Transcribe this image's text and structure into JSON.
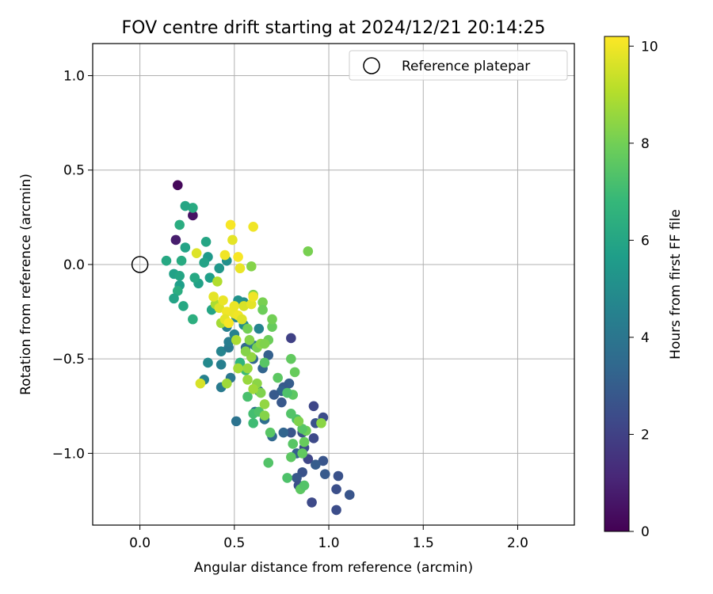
{
  "chart_data": {
    "type": "scatter",
    "title": "FOV centre drift starting at 2024/12/21 20:14:25",
    "xlabel": "Angular distance from reference (arcmin)",
    "ylabel": "Rotation from reference (arcmin)",
    "xlim": [
      -0.25,
      2.3
    ],
    "ylim": [
      -1.38,
      1.17
    ],
    "xticks": [
      0.0,
      0.5,
      1.0,
      1.5,
      2.0
    ],
    "xtick_labels": [
      "0.0",
      "0.5",
      "1.0",
      "1.5",
      "2.0"
    ],
    "yticks": [
      1.0,
      0.5,
      0.0,
      -0.5,
      -1.0
    ],
    "ytick_labels": [
      "1.0",
      "0.5",
      "0.0",
      "−0.5",
      "−1.0"
    ],
    "grid": true,
    "legend": {
      "position": "upper-right",
      "entries": [
        "Reference platepar"
      ]
    },
    "reference_point": {
      "x": 0.0,
      "y": 0.0,
      "marker": "open-circle"
    },
    "colorbar": {
      "label": "Hours from first FF file",
      "colormap": "viridis",
      "range": [
        0,
        10.2
      ],
      "ticks": [
        0,
        2,
        4,
        6,
        8,
        10
      ],
      "tick_labels": [
        "0",
        "2",
        "4",
        "6",
        "8",
        "10"
      ],
      "stops": [
        "#440154",
        "#482878",
        "#3e4989",
        "#31688e",
        "#26828e",
        "#1f9e89",
        "#35b779",
        "#6ece58",
        "#b5de2b",
        "#fde725"
      ]
    },
    "points": [
      {
        "x": 0.2,
        "y": 0.42,
        "h": 0.2
      },
      {
        "x": 0.28,
        "y": 0.26,
        "h": 0.5
      },
      {
        "x": 0.19,
        "y": 0.13,
        "h": 0.8
      },
      {
        "x": 0.8,
        "y": -0.39,
        "h": 2.0
      },
      {
        "x": 0.92,
        "y": -0.75,
        "h": 2.2
      },
      {
        "x": 0.97,
        "y": -0.81,
        "h": 2.4
      },
      {
        "x": 0.93,
        "y": -0.84,
        "h": 2.6
      },
      {
        "x": 0.92,
        "y": -0.92,
        "h": 2.3
      },
      {
        "x": 0.86,
        "y": -0.89,
        "h": 2.5
      },
      {
        "x": 0.8,
        "y": -0.89,
        "h": 2.7
      },
      {
        "x": 0.87,
        "y": -0.97,
        "h": 2.4
      },
      {
        "x": 0.89,
        "y": -1.03,
        "h": 2.2
      },
      {
        "x": 0.86,
        "y": -1.1,
        "h": 2.6
      },
      {
        "x": 0.83,
        "y": -1.13,
        "h": 2.8
      },
      {
        "x": 0.84,
        "y": -1.17,
        "h": 2.5
      },
      {
        "x": 0.91,
        "y": -1.26,
        "h": 2.3
      },
      {
        "x": 0.98,
        "y": -1.11,
        "h": 2.9
      },
      {
        "x": 0.97,
        "y": -1.04,
        "h": 2.7
      },
      {
        "x": 1.05,
        "y": -1.12,
        "h": 2.6
      },
      {
        "x": 1.04,
        "y": -1.19,
        "h": 2.5
      },
      {
        "x": 1.11,
        "y": -1.22,
        "h": 2.7
      },
      {
        "x": 1.04,
        "y": -1.3,
        "h": 2.4
      },
      {
        "x": 0.93,
        "y": -1.06,
        "h": 3.0
      },
      {
        "x": 0.83,
        "y": -1.0,
        "h": 3.1
      },
      {
        "x": 0.79,
        "y": -0.63,
        "h": 3.0
      },
      {
        "x": 0.76,
        "y": -0.65,
        "h": 2.9
      },
      {
        "x": 0.75,
        "y": -0.73,
        "h": 2.8
      },
      {
        "x": 0.75,
        "y": -0.67,
        "h": 3.2
      },
      {
        "x": 0.71,
        "y": -0.69,
        "h": 2.9
      },
      {
        "x": 0.68,
        "y": -0.48,
        "h": 3.1
      },
      {
        "x": 0.65,
        "y": -0.55,
        "h": 3.3
      },
      {
        "x": 0.56,
        "y": -0.44,
        "h": 3.5
      },
      {
        "x": 0.6,
        "y": -0.5,
        "h": 3.4
      },
      {
        "x": 0.63,
        "y": -0.67,
        "h": 3.6
      },
      {
        "x": 0.61,
        "y": -0.78,
        "h": 3.8
      },
      {
        "x": 0.66,
        "y": -0.82,
        "h": 3.7
      },
      {
        "x": 0.7,
        "y": -0.91,
        "h": 3.4
      },
      {
        "x": 0.76,
        "y": -0.89,
        "h": 3.3
      },
      {
        "x": 0.51,
        "y": -0.83,
        "h": 3.9
      },
      {
        "x": 0.48,
        "y": -0.6,
        "h": 4.0
      },
      {
        "x": 0.43,
        "y": -0.65,
        "h": 4.2
      },
      {
        "x": 0.43,
        "y": -0.53,
        "h": 4.4
      },
      {
        "x": 0.43,
        "y": -0.46,
        "h": 4.6
      },
      {
        "x": 0.36,
        "y": -0.52,
        "h": 4.8
      },
      {
        "x": 0.47,
        "y": -0.44,
        "h": 4.1
      },
      {
        "x": 0.47,
        "y": -0.41,
        "h": 4.3
      },
      {
        "x": 0.5,
        "y": -0.37,
        "h": 4.5
      },
      {
        "x": 0.51,
        "y": -0.28,
        "h": 4.7
      },
      {
        "x": 0.46,
        "y": -0.33,
        "h": 4.4
      },
      {
        "x": 0.55,
        "y": -0.32,
        "h": 4.9
      },
      {
        "x": 0.63,
        "y": -0.34,
        "h": 4.6
      },
      {
        "x": 0.61,
        "y": -0.43,
        "h": 4.2
      },
      {
        "x": 0.55,
        "y": -0.2,
        "h": 5.0
      },
      {
        "x": 0.52,
        "y": -0.19,
        "h": 5.2
      },
      {
        "x": 0.34,
        "y": -0.61,
        "h": 4.5
      },
      {
        "x": 0.46,
        "y": 0.02,
        "h": 5.1
      },
      {
        "x": 0.42,
        "y": -0.02,
        "h": 5.4
      },
      {
        "x": 0.37,
        "y": -0.07,
        "h": 5.7
      },
      {
        "x": 0.36,
        "y": 0.04,
        "h": 5.5
      },
      {
        "x": 0.34,
        "y": 0.01,
        "h": 5.9
      },
      {
        "x": 0.35,
        "y": 0.12,
        "h": 6.0
      },
      {
        "x": 0.31,
        "y": -0.1,
        "h": 5.8
      },
      {
        "x": 0.29,
        "y": -0.07,
        "h": 6.1
      },
      {
        "x": 0.28,
        "y": 0.3,
        "h": 6.2
      },
      {
        "x": 0.24,
        "y": 0.31,
        "h": 6.0
      },
      {
        "x": 0.21,
        "y": 0.21,
        "h": 6.3
      },
      {
        "x": 0.24,
        "y": 0.09,
        "h": 5.9
      },
      {
        "x": 0.22,
        "y": 0.02,
        "h": 6.2
      },
      {
        "x": 0.14,
        "y": 0.02,
        "h": 6.1
      },
      {
        "x": 0.18,
        "y": -0.05,
        "h": 5.8
      },
      {
        "x": 0.21,
        "y": -0.06,
        "h": 6.0
      },
      {
        "x": 0.21,
        "y": -0.11,
        "h": 5.7
      },
      {
        "x": 0.2,
        "y": -0.14,
        "h": 6.3
      },
      {
        "x": 0.18,
        "y": -0.18,
        "h": 5.9
      },
      {
        "x": 0.23,
        "y": -0.22,
        "h": 6.1
      },
      {
        "x": 0.28,
        "y": -0.29,
        "h": 6.4
      },
      {
        "x": 0.38,
        "y": -0.24,
        "h": 6.0
      },
      {
        "x": 0.53,
        "y": -0.52,
        "h": 6.6
      },
      {
        "x": 0.56,
        "y": -0.56,
        "h": 6.9
      },
      {
        "x": 0.57,
        "y": -0.7,
        "h": 7.2
      },
      {
        "x": 0.6,
        "y": -0.79,
        "h": 7.1
      },
      {
        "x": 0.6,
        "y": -0.84,
        "h": 7.0
      },
      {
        "x": 0.63,
        "y": -0.78,
        "h": 7.3
      },
      {
        "x": 0.69,
        "y": -0.89,
        "h": 7.5
      },
      {
        "x": 0.68,
        "y": -1.05,
        "h": 7.4
      },
      {
        "x": 0.78,
        "y": -1.13,
        "h": 7.3
      },
      {
        "x": 0.8,
        "y": -1.02,
        "h": 7.6
      },
      {
        "x": 0.81,
        "y": -0.95,
        "h": 7.5
      },
      {
        "x": 0.86,
        "y": -1.0,
        "h": 7.7
      },
      {
        "x": 0.85,
        "y": -1.19,
        "h": 7.6
      },
      {
        "x": 0.87,
        "y": -1.17,
        "h": 7.4
      },
      {
        "x": 0.87,
        "y": -0.94,
        "h": 7.8
      },
      {
        "x": 0.88,
        "y": -0.88,
        "h": 7.9
      },
      {
        "x": 0.86,
        "y": -0.87,
        "h": 7.5
      },
      {
        "x": 0.83,
        "y": -0.82,
        "h": 7.2
      },
      {
        "x": 0.8,
        "y": -0.79,
        "h": 7.4
      },
      {
        "x": 0.81,
        "y": -0.69,
        "h": 7.6
      },
      {
        "x": 0.78,
        "y": -0.68,
        "h": 7.3
      },
      {
        "x": 0.8,
        "y": -0.5,
        "h": 7.7
      },
      {
        "x": 0.82,
        "y": -0.57,
        "h": 7.8
      },
      {
        "x": 0.73,
        "y": -0.6,
        "h": 7.6
      },
      {
        "x": 0.66,
        "y": -0.52,
        "h": 7.5
      },
      {
        "x": 0.68,
        "y": -0.4,
        "h": 7.9
      },
      {
        "x": 0.7,
        "y": -0.33,
        "h": 7.8
      },
      {
        "x": 0.7,
        "y": -0.29,
        "h": 8.0
      },
      {
        "x": 0.65,
        "y": -0.2,
        "h": 8.1
      },
      {
        "x": 0.65,
        "y": -0.24,
        "h": 7.9
      },
      {
        "x": 0.6,
        "y": -0.16,
        "h": 8.2
      },
      {
        "x": 0.57,
        "y": -0.34,
        "h": 8.0
      },
      {
        "x": 0.58,
        "y": -0.4,
        "h": 8.3
      },
      {
        "x": 0.62,
        "y": -0.44,
        "h": 8.1
      },
      {
        "x": 0.64,
        "y": -0.42,
        "h": 8.4
      },
      {
        "x": 0.66,
        "y": -0.42,
        "h": 8.2
      },
      {
        "x": 0.59,
        "y": -0.49,
        "h": 8.5
      },
      {
        "x": 0.56,
        "y": -0.46,
        "h": 8.3
      },
      {
        "x": 0.57,
        "y": -0.55,
        "h": 8.6
      },
      {
        "x": 0.62,
        "y": -0.63,
        "h": 8.4
      },
      {
        "x": 0.64,
        "y": -0.68,
        "h": 8.2
      },
      {
        "x": 0.66,
        "y": -0.74,
        "h": 8.5
      },
      {
        "x": 0.6,
        "y": -0.66,
        "h": 8.7
      },
      {
        "x": 0.66,
        "y": -0.8,
        "h": 8.3
      },
      {
        "x": 0.57,
        "y": -0.61,
        "h": 8.6
      },
      {
        "x": 0.52,
        "y": -0.55,
        "h": 8.8
      },
      {
        "x": 0.46,
        "y": -0.63,
        "h": 8.7
      },
      {
        "x": 0.51,
        "y": -0.4,
        "h": 8.9
      },
      {
        "x": 0.43,
        "y": -0.31,
        "h": 8.8
      },
      {
        "x": 0.4,
        "y": -0.21,
        "h": 8.9
      },
      {
        "x": 0.41,
        "y": -0.09,
        "h": 9.0
      },
      {
        "x": 0.59,
        "y": -0.01,
        "h": 8.3
      },
      {
        "x": 0.89,
        "y": 0.07,
        "h": 8.1
      },
      {
        "x": 0.84,
        "y": -0.83,
        "h": 8.2
      },
      {
        "x": 0.96,
        "y": -0.84,
        "h": 8.4
      },
      {
        "x": 0.32,
        "y": -0.63,
        "h": 9.6
      },
      {
        "x": 0.39,
        "y": -0.17,
        "h": 9.8
      },
      {
        "x": 0.42,
        "y": -0.23,
        "h": 9.7
      },
      {
        "x": 0.44,
        "y": -0.19,
        "h": 9.9
      },
      {
        "x": 0.46,
        "y": -0.25,
        "h": 10.0
      },
      {
        "x": 0.45,
        "y": -0.29,
        "h": 9.8
      },
      {
        "x": 0.47,
        "y": -0.31,
        "h": 10.1
      },
      {
        "x": 0.5,
        "y": -0.26,
        "h": 9.9
      },
      {
        "x": 0.52,
        "y": -0.27,
        "h": 10.0
      },
      {
        "x": 0.54,
        "y": -0.29,
        "h": 9.7
      },
      {
        "x": 0.5,
        "y": -0.22,
        "h": 9.9
      },
      {
        "x": 0.55,
        "y": -0.22,
        "h": 9.6
      },
      {
        "x": 0.59,
        "y": -0.21,
        "h": 9.8
      },
      {
        "x": 0.6,
        "y": -0.17,
        "h": 10.0
      },
      {
        "x": 0.52,
        "y": 0.04,
        "h": 10.1
      },
      {
        "x": 0.53,
        "y": -0.02,
        "h": 9.9
      },
      {
        "x": 0.45,
        "y": 0.05,
        "h": 10.0
      },
      {
        "x": 0.49,
        "y": 0.13,
        "h": 9.8
      },
      {
        "x": 0.48,
        "y": 0.21,
        "h": 10.1
      },
      {
        "x": 0.6,
        "y": 0.2,
        "h": 10.0
      },
      {
        "x": 0.3,
        "y": 0.06,
        "h": 9.7
      }
    ]
  }
}
